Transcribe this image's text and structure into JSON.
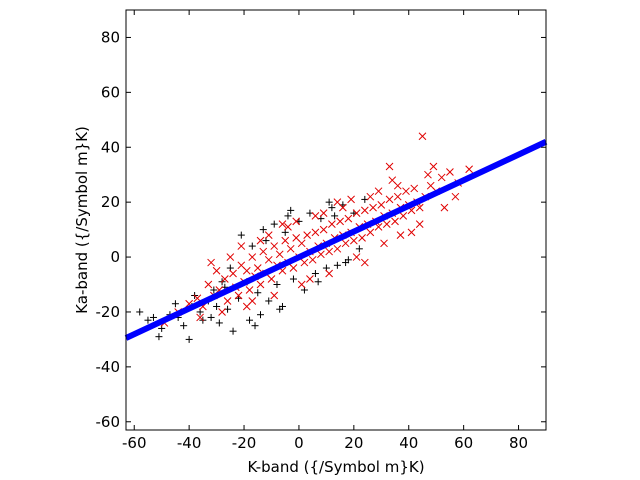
{
  "chart_data": {
    "type": "scatter",
    "xlabel": "K-band ({/Symbol m}K)",
    "ylabel": "Ka-band ({/Symbol m}K)",
    "xlim": [
      -63,
      90
    ],
    "ylim": [
      -63,
      90
    ],
    "xticks": [
      -60,
      -40,
      -20,
      0,
      20,
      40,
      60,
      80
    ],
    "yticks": [
      -60,
      -40,
      -20,
      0,
      20,
      40,
      60,
      80
    ],
    "grid": false,
    "legend": "none",
    "series": [
      {
        "marker": "plus",
        "color": "#000000",
        "points": [
          [
            -58,
            -20
          ],
          [
            -55,
            -23
          ],
          [
            -51,
            -29
          ],
          [
            -50,
            -26
          ],
          [
            -47,
            -21
          ],
          [
            -45,
            -17
          ],
          [
            -42,
            -25
          ],
          [
            -40,
            -30
          ],
          [
            -38,
            -14
          ],
          [
            -36,
            -20
          ],
          [
            -35,
            -23
          ],
          [
            -33,
            -16
          ],
          [
            -31,
            -12
          ],
          [
            -30,
            -18
          ],
          [
            -29,
            -24
          ],
          [
            -27,
            -11
          ],
          [
            -26,
            -19
          ],
          [
            -24,
            -27
          ],
          [
            -22,
            -15
          ],
          [
            -21,
            8
          ],
          [
            -19,
            -9
          ],
          [
            -18,
            -23
          ],
          [
            -17,
            4
          ],
          [
            -15,
            -13
          ],
          [
            -14,
            -21
          ],
          [
            -12,
            6
          ],
          [
            -11,
            -16
          ],
          [
            -9,
            12
          ],
          [
            -8,
            -10
          ],
          [
            -6,
            -18
          ],
          [
            -5,
            9
          ],
          [
            -4,
            15
          ],
          [
            -2,
            -8
          ],
          [
            0,
            13
          ],
          [
            2,
            -12
          ],
          [
            4,
            16
          ],
          [
            6,
            -6
          ],
          [
            8,
            14
          ],
          [
            10,
            -4
          ],
          [
            12,
            18
          ],
          [
            14,
            -3
          ],
          [
            16,
            19
          ],
          [
            18,
            -1
          ],
          [
            20,
            16
          ],
          [
            22,
            3
          ],
          [
            24,
            21
          ],
          [
            -13,
            10
          ],
          [
            -25,
            -4
          ],
          [
            -32,
            -22
          ],
          [
            -44,
            -22
          ],
          [
            -3,
            17
          ],
          [
            7,
            -9
          ],
          [
            13,
            15
          ],
          [
            -16,
            -25
          ],
          [
            -28,
            -9
          ],
          [
            -7,
            -19
          ],
          [
            11,
            20
          ],
          [
            17,
            -2
          ],
          [
            -39,
            -18
          ],
          [
            -53,
            -22
          ]
        ]
      },
      {
        "marker": "cross",
        "color": "#e00000",
        "points": [
          [
            -49,
            -24
          ],
          [
            -44,
            -20
          ],
          [
            -40,
            -17
          ],
          [
            -37,
            -15
          ],
          [
            -35,
            -18
          ],
          [
            -33,
            -10
          ],
          [
            -31,
            -14
          ],
          [
            -29,
            -12
          ],
          [
            -27,
            -8
          ],
          [
            -26,
            -16
          ],
          [
            -24,
            -6
          ],
          [
            -23,
            -11
          ],
          [
            -22,
            -14
          ],
          [
            -21,
            -3
          ],
          [
            -20,
            -9
          ],
          [
            -19,
            -5
          ],
          [
            -18,
            -12
          ],
          [
            -17,
            0
          ],
          [
            -16,
            -7
          ],
          [
            -15,
            -4
          ],
          [
            -14,
            -10
          ],
          [
            -13,
            2
          ],
          [
            -12,
            -6
          ],
          [
            -11,
            -1
          ],
          [
            -10,
            -8
          ],
          [
            -9,
            4
          ],
          [
            -8,
            -3
          ],
          [
            -7,
            1
          ],
          [
            -6,
            -5
          ],
          [
            -5,
            6
          ],
          [
            -4,
            -2
          ],
          [
            -3,
            3
          ],
          [
            -2,
            -4
          ],
          [
            -1,
            7
          ],
          [
            0,
            0
          ],
          [
            1,
            5
          ],
          [
            2,
            -2
          ],
          [
            3,
            8
          ],
          [
            4,
            2
          ],
          [
            5,
            -1
          ],
          [
            6,
            9
          ],
          [
            7,
            4
          ],
          [
            8,
            1
          ],
          [
            9,
            10
          ],
          [
            10,
            5
          ],
          [
            11,
            2
          ],
          [
            12,
            12
          ],
          [
            13,
            7
          ],
          [
            14,
            3
          ],
          [
            15,
            13
          ],
          [
            16,
            8
          ],
          [
            17,
            5
          ],
          [
            18,
            14
          ],
          [
            19,
            9
          ],
          [
            20,
            6
          ],
          [
            21,
            16
          ],
          [
            22,
            11
          ],
          [
            23,
            7
          ],
          [
            24,
            17
          ],
          [
            25,
            12
          ],
          [
            26,
            9
          ],
          [
            27,
            18
          ],
          [
            28,
            13
          ],
          [
            29,
            11
          ],
          [
            30,
            19
          ],
          [
            31,
            15
          ],
          [
            32,
            12
          ],
          [
            33,
            21
          ],
          [
            34,
            16
          ],
          [
            35,
            13
          ],
          [
            36,
            22
          ],
          [
            37,
            18
          ],
          [
            38,
            15
          ],
          [
            39,
            24
          ],
          [
            40,
            19
          ],
          [
            41,
            17
          ],
          [
            42,
            25
          ],
          [
            43,
            20
          ],
          [
            44,
            18
          ],
          [
            45,
            44
          ],
          [
            46,
            22
          ],
          [
            47,
            30
          ],
          [
            48,
            26
          ],
          [
            50,
            24
          ],
          [
            52,
            29
          ],
          [
            55,
            31
          ],
          [
            58,
            27
          ],
          [
            62,
            32
          ],
          [
            -28,
            -20
          ],
          [
            -25,
            0
          ],
          [
            -19,
            -18
          ],
          [
            -14,
            6
          ],
          [
            -9,
            -14
          ],
          [
            -4,
            11
          ],
          [
            1,
            -10
          ],
          [
            6,
            15
          ],
          [
            11,
            -6
          ],
          [
            16,
            18
          ],
          [
            21,
            0
          ],
          [
            26,
            22
          ],
          [
            31,
            5
          ],
          [
            36,
            26
          ],
          [
            41,
            9
          ],
          [
            -32,
            -2
          ],
          [
            -17,
            -16
          ],
          [
            -6,
            12
          ],
          [
            4,
            -8
          ],
          [
            14,
            20
          ],
          [
            24,
            -2
          ],
          [
            34,
            28
          ],
          [
            44,
            12
          ],
          [
            49,
            33
          ],
          [
            53,
            18
          ],
          [
            57,
            22
          ],
          [
            33,
            33
          ],
          [
            37,
            8
          ],
          [
            29,
            24
          ],
          [
            19,
            21
          ],
          [
            9,
            16
          ],
          [
            -1,
            13
          ],
          [
            -11,
            8
          ],
          [
            -21,
            4
          ],
          [
            -30,
            -5
          ],
          [
            -36,
            -22
          ]
        ]
      }
    ],
    "fit_line": {
      "color": "#0000ff",
      "x": [
        -63,
        90
      ],
      "y": [
        -29.5,
        42
      ]
    }
  }
}
